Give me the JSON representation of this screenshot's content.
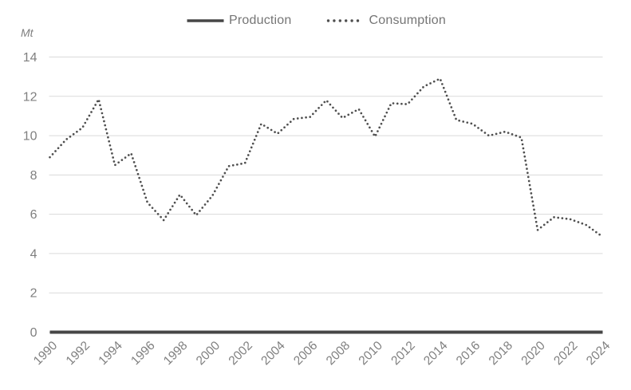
{
  "chart_data": {
    "type": "line",
    "title": "",
    "unit_label": "Mt",
    "x": [
      1990,
      1991,
      1992,
      1993,
      1994,
      1995,
      1996,
      1997,
      1998,
      1999,
      2000,
      2001,
      2002,
      2003,
      2004,
      2005,
      2006,
      2007,
      2008,
      2009,
      2010,
      2011,
      2012,
      2013,
      2014,
      2015,
      2016,
      2017,
      2018,
      2019,
      2020,
      2021,
      2022,
      2023,
      2024
    ],
    "x_tick_step": 2,
    "y_ticks": [
      0,
      2,
      4,
      6,
      8,
      10,
      12,
      14
    ],
    "ylim": [
      0,
      14
    ],
    "grid": true,
    "legend_position": "top",
    "series": [
      {
        "name": "Production",
        "style": "solid",
        "color": "#464646",
        "values": [
          0,
          0,
          0,
          0,
          0,
          0,
          0,
          0,
          0,
          0,
          0,
          0,
          0,
          0,
          0,
          0,
          0,
          0,
          0,
          0,
          0,
          0,
          0,
          0,
          0,
          0,
          0,
          0,
          0,
          0,
          0,
          0,
          0,
          0,
          0
        ]
      },
      {
        "name": "Consumption",
        "style": "dotted",
        "color": "#4f4f4f",
        "values": [
          8.9,
          9.8,
          10.4,
          11.85,
          8.5,
          9.1,
          6.6,
          5.7,
          7.0,
          5.95,
          6.95,
          8.45,
          8.6,
          10.6,
          10.1,
          10.85,
          10.95,
          11.8,
          10.9,
          11.35,
          9.95,
          11.65,
          11.6,
          12.5,
          12.9,
          10.8,
          10.6,
          10.0,
          10.2,
          9.9,
          5.2,
          5.85,
          5.75,
          5.45,
          4.85
        ]
      }
    ],
    "colors": {
      "grid": "#dadada",
      "tick_label": "#7f7f7f",
      "legend_label": "#757575",
      "background": "#ffffff"
    }
  }
}
